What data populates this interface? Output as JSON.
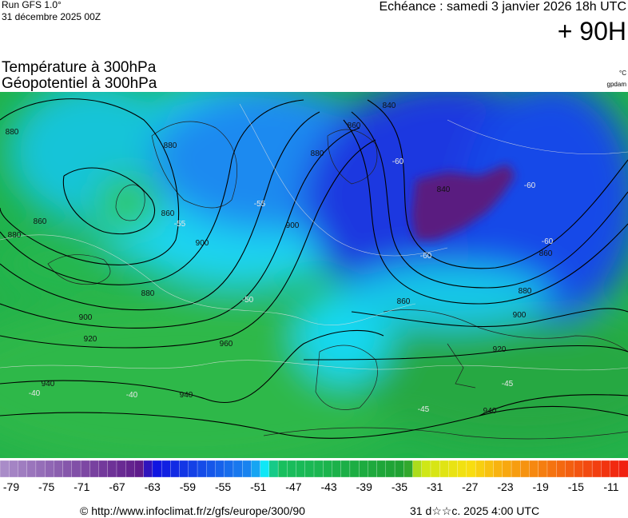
{
  "header": {
    "run": "Run GFS 1.0°",
    "run_date": "31 décembre 2025 00Z",
    "echeance": "Echéance : samedi 3 janvier 2026 18h UTC",
    "lead": "+ 90H"
  },
  "titles": {
    "line1": "Température à 300hPa",
    "line2": "Géopotentiel à 300hPa",
    "unit1": "°C",
    "unit2": "gpdam"
  },
  "map": {
    "geopotential_labels": [
      "880",
      "860",
      "880",
      "900",
      "920",
      "940",
      "940",
      "960",
      "900",
      "900",
      "860",
      "880",
      "900",
      "920",
      "940",
      "860",
      "840",
      "840",
      "860",
      "880",
      "880",
      "860",
      "880"
    ],
    "temperature_labels": [
      "-55",
      "-60",
      "-60",
      "-60",
      "-60",
      "-45",
      "-45",
      "-40",
      "-40",
      "-50",
      "-55"
    ]
  },
  "colorbar": {
    "labels": [
      -79,
      -75,
      -71,
      -67,
      -63,
      -59,
      -55,
      -51,
      -47,
      -43,
      -39,
      -35,
      -31,
      -27,
      -23,
      -19,
      -15,
      -11
    ]
  },
  "footer": {
    "copyright": "© http://www.infoclimat.fr/z/gfs/europe/300/90",
    "timestamp": "31 d☆☆c. 2025  4:00 UTC"
  }
}
